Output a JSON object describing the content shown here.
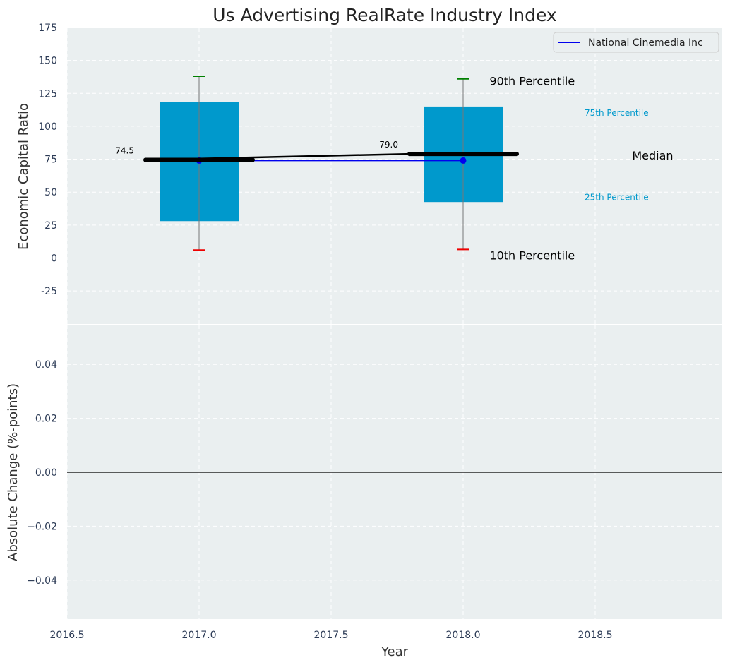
{
  "chart_data": [
    {
      "type": "box",
      "title": "Us Advertising RealRate Industry Index",
      "xlabel": "Year",
      "ylabel": "Economic Capital Ratio",
      "xlim": [
        2016.5,
        2019.0
      ],
      "ylim": [
        -50,
        175
      ],
      "yticks": [
        -25,
        0,
        25,
        50,
        75,
        100,
        125,
        150,
        175
      ],
      "grid": true,
      "legend_position": "top-right",
      "boxes": [
        {
          "x": 2017.0,
          "p10": 6,
          "p25": 28,
          "median": 74.5,
          "p75": 118.5,
          "p90": 138
        },
        {
          "x": 2018.0,
          "p10": 6.5,
          "p25": 42.5,
          "median": 79.0,
          "p75": 115,
          "p90": 136
        }
      ],
      "median_labels": [
        "74.5",
        "79.0"
      ],
      "company_series": {
        "name": "National Cinemedia Inc",
        "x": [
          2017.0,
          2018.0
        ],
        "y": [
          74,
          74
        ],
        "color": "#0000ee"
      },
      "legend_entries": [
        "National Cinemedia Inc"
      ],
      "annotations": {
        "p90": "90th Percentile",
        "p75": "75th Percentile",
        "median": "Median",
        "p25": "25th Percentile",
        "p10": "10th Percentile"
      },
      "colors": {
        "box": "#0099cc",
        "p90_cap": "#008000",
        "p10_cap": "#ee0000",
        "median": "#000000",
        "background": "#eaeff0",
        "annotation_blue": "#0099cc"
      }
    },
    {
      "type": "line",
      "xlabel": "Year",
      "ylabel": "Absolute Change (%-points)",
      "xlim": [
        2016.5,
        2019.0
      ],
      "ylim": [
        -0.055,
        0.055
      ],
      "yticks": [
        "−0.04",
        "−0.02",
        "0.00",
        "0.02",
        "0.04"
      ],
      "ytick_values": [
        -0.04,
        -0.02,
        0,
        0.02,
        0.04
      ],
      "xticks": [
        "2016.5",
        "2017.0",
        "2017.5",
        "2018.0",
        "2018.5"
      ],
      "xtick_values": [
        2016.5,
        2017.0,
        2017.5,
        2018.0,
        2018.5
      ],
      "zero_line": 0,
      "grid": true
    }
  ]
}
